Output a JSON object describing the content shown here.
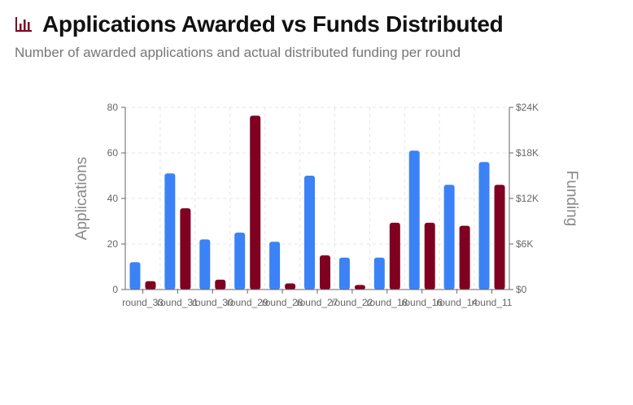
{
  "header": {
    "title": "Applications Awarded vs Funds Distributed",
    "subtitle": "Number of awarded applications and actual distributed funding per round",
    "icon": "bar-chart-icon"
  },
  "colors": {
    "applications": "#3b82f6",
    "funding": "#7f0020",
    "icon": "#7f0020",
    "grid": "#e5e5e5",
    "axis": "#666666"
  },
  "chart_data": {
    "type": "bar",
    "categories": [
      "round_33",
      "round_31",
      "round_30",
      "round_29",
      "round_28",
      "round_27",
      "round_22",
      "round_18",
      "round_16",
      "round_14",
      "round_11"
    ],
    "series": [
      {
        "axis": "left",
        "values": [
          12,
          51,
          22,
          25,
          21,
          50,
          14,
          14,
          61,
          46,
          56
        ]
      },
      {
        "axis": "right",
        "values": [
          1100,
          10700,
          1300,
          22900,
          800,
          4500,
          600,
          8800,
          8800,
          8400,
          13800
        ]
      }
    ],
    "ylabel": "Applications",
    "y2label": "Funding",
    "ylim": [
      0,
      80
    ],
    "y2lim": [
      0,
      24000
    ],
    "yticks": [
      "0",
      "20",
      "40",
      "60",
      "80"
    ],
    "y2ticks": [
      "$0",
      "$6K",
      "$12K",
      "$18K",
      "$24K"
    ],
    "grid": true,
    "legend": "none"
  }
}
